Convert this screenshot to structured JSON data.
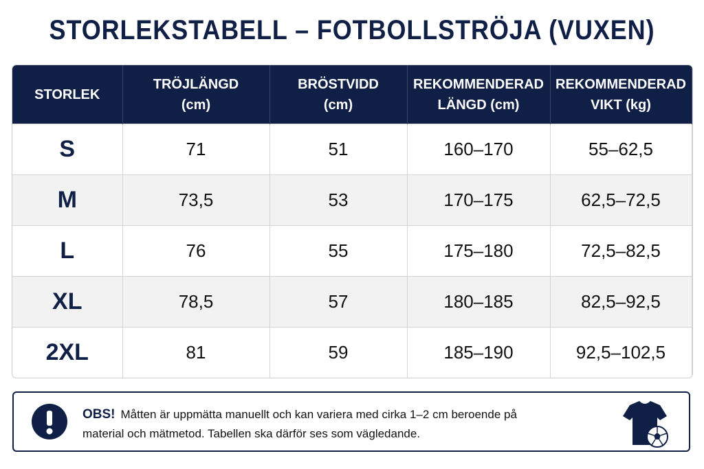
{
  "title": "STORLEKSTABELL – FOTBOLLSTRÖJA (VUXEN)",
  "table": {
    "header": [
      [
        "STORLEK"
      ],
      [
        "TRÖJLÄNGD",
        "(cm)"
      ],
      [
        "BRÖSTVIDD",
        "(cm)"
      ],
      [
        "REKOMMENDERAD",
        "LÄNGD (cm)"
      ],
      [
        "REKOMMENDERAD",
        "VIKT (kg)"
      ]
    ],
    "rows": [
      [
        "S",
        "71",
        "51",
        "160–170",
        "55–62,5"
      ],
      [
        "M",
        "73,5",
        "53",
        "170–175",
        "62,5–72,5"
      ],
      [
        "L",
        "76",
        "55",
        "175–180",
        "72,5–82,5"
      ],
      [
        "XL",
        "78,5",
        "57",
        "180–185",
        "82,5–92,5"
      ],
      [
        "2XL",
        "81",
        "59",
        "185–190",
        "92,5–102,5"
      ]
    ]
  },
  "note": {
    "label": "OBS!",
    "text": "Måtten är uppmätta manuellt och kan variera med cirka 1–2 cm beroende på material och mätmetod. Tabellen ska därför ses som vägledande."
  }
}
